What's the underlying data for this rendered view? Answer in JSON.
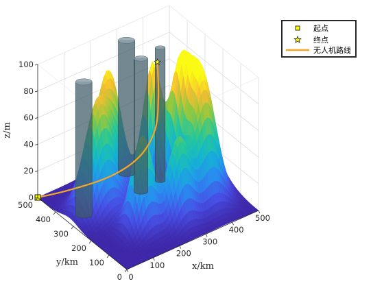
{
  "chart_data": {
    "type": "surface3d",
    "title": "",
    "xlabel": "x/km",
    "ylabel": "y/km",
    "zlabel": "z/m",
    "xlim": [
      0,
      500
    ],
    "ylim": [
      0,
      500
    ],
    "zlim": [
      0,
      100
    ],
    "xticks": [
      "0",
      "100",
      "200",
      "300",
      "400",
      "500"
    ],
    "yticks": [
      "0",
      "100",
      "200",
      "300",
      "400",
      "500"
    ],
    "zticks": [
      "0",
      "20",
      "40",
      "60",
      "80",
      "100"
    ],
    "grid": true,
    "legend_position": "top-right",
    "legend": [
      {
        "label": "起点",
        "marker": "square",
        "color": "#ffff00"
      },
      {
        "label": "终点",
        "marker": "pentagram",
        "color": "#ffff00"
      },
      {
        "label": "无人机路线",
        "marker": "line",
        "color": "#f5a623"
      }
    ],
    "peaks": [
      {
        "x": 110,
        "y": 320,
        "height": 80,
        "sigma": 45
      },
      {
        "x": 190,
        "y": 380,
        "height": 85,
        "sigma": 40
      },
      {
        "x": 160,
        "y": 150,
        "height": 70,
        "sigma": 35
      },
      {
        "x": 270,
        "y": 110,
        "height": 60,
        "sigma": 35
      },
      {
        "x": 300,
        "y": 300,
        "height": 95,
        "sigma": 30
      },
      {
        "x": 350,
        "y": 230,
        "height": 80,
        "sigma": 32
      },
      {
        "x": 380,
        "y": 140,
        "height": 83,
        "sigma": 45
      },
      {
        "x": 420,
        "y": 210,
        "height": 65,
        "sigma": 40
      }
    ],
    "obstacles": [
      {
        "x": 60,
        "y": 330,
        "radius": 30,
        "height": 100
      },
      {
        "x": 290,
        "y": 430,
        "radius": 30,
        "height": 100
      },
      {
        "x": 270,
        "y": 320,
        "radius": 25,
        "height": 100
      },
      {
        "x": 350,
        "y": 330,
        "radius": 18,
        "height": 100
      }
    ],
    "start": {
      "x": 0,
      "y": 500,
      "z": 0
    },
    "end": {
      "x": 380,
      "y": 390,
      "z": 80
    },
    "route": [
      {
        "x": 0,
        "y": 500,
        "z": 0
      },
      {
        "x": 80,
        "y": 440,
        "z": 5
      },
      {
        "x": 180,
        "y": 360,
        "z": 15
      },
      {
        "x": 250,
        "y": 300,
        "z": 30
      },
      {
        "x": 310,
        "y": 300,
        "z": 45
      },
      {
        "x": 350,
        "y": 340,
        "z": 62
      },
      {
        "x": 380,
        "y": 390,
        "z": 80
      }
    ]
  }
}
